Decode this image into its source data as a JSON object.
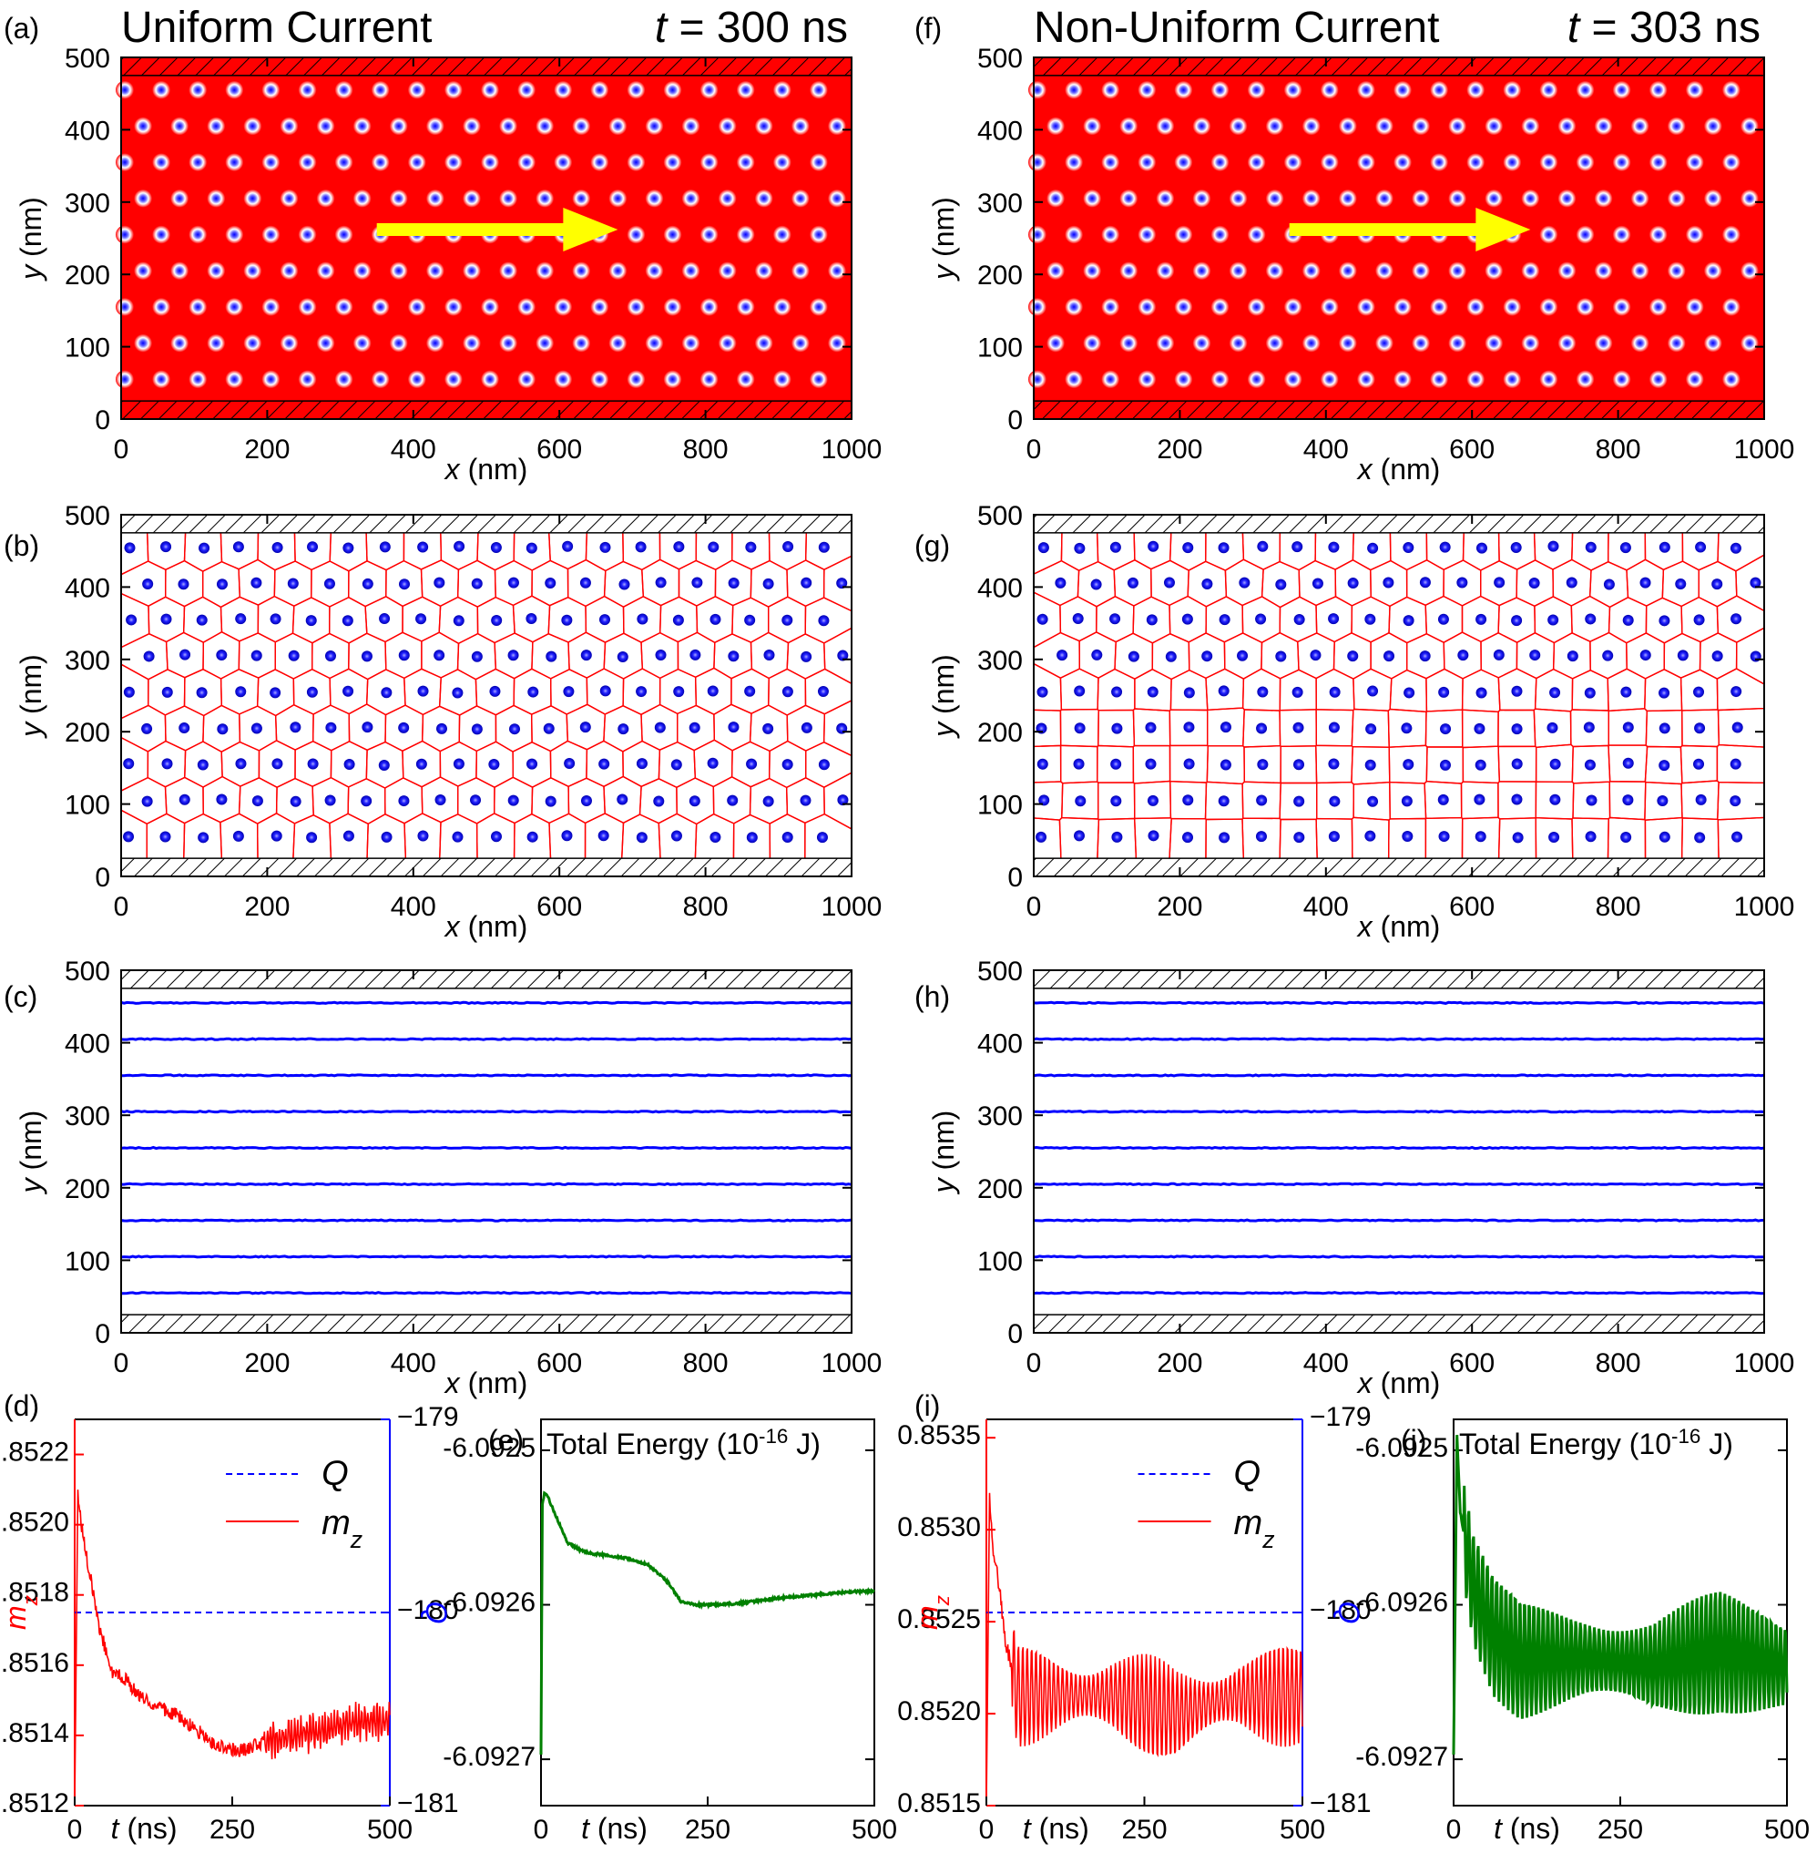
{
  "chart_data": [
    {
      "type": "heatmap",
      "panel": "(a)",
      "title": "Uniform Current",
      "time_label": "t = 300 ns",
      "xlabel": "x (nm)",
      "ylabel": "y (nm)",
      "xlim": [
        0,
        1000
      ],
      "ylim": [
        0,
        500
      ],
      "xticks": [
        0,
        200,
        400,
        600,
        800,
        1000
      ],
      "yticks": [
        0,
        100,
        200,
        300,
        400,
        500
      ],
      "rows_y": [
        55,
        105,
        155,
        205,
        255,
        305,
        355,
        405,
        455
      ],
      "spacing_nm": 50,
      "arrow": {
        "x_start": 350,
        "x_end": 680,
        "y": 262
      },
      "colors": {
        "background": "#ff0000",
        "skyrmion_core": "#0000ff",
        "arrow": "#ffff00",
        "hatch": "#000000"
      },
      "boundary": "hatched edges y<25 and y>475"
    },
    {
      "type": "scatter",
      "panel": "(b)",
      "description_note": "skyrmion positions with Voronoi tessellation",
      "xlabel": "x (nm)",
      "ylabel": "y (nm)",
      "xlim": [
        0,
        1000
      ],
      "ylim": [
        0,
        500
      ],
      "xticks": [
        0,
        200,
        400,
        600,
        800,
        1000
      ],
      "yticks": [
        0,
        100,
        200,
        300,
        400,
        500
      ],
      "rows_y": [
        55,
        105,
        155,
        205,
        255,
        305,
        355,
        405,
        455
      ],
      "lattice": "triangular",
      "colors": {
        "points": "#0000ff",
        "voronoi": "#ff0000"
      }
    },
    {
      "type": "line",
      "panel": "(c)",
      "xlabel": "x (nm)",
      "ylabel": "y (nm)",
      "xlim": [
        0,
        1000
      ],
      "ylim": [
        0,
        500
      ],
      "xticks": [
        0,
        200,
        400,
        600,
        800,
        1000
      ],
      "yticks": [
        0,
        100,
        200,
        300,
        400,
        500
      ],
      "tracks_y": [
        55,
        105,
        155,
        205,
        255,
        305,
        355,
        405,
        455
      ],
      "colors": {
        "tracks": "#0000ff"
      }
    },
    {
      "type": "line",
      "panel": "(d)",
      "xlabel": "t (ns)",
      "ylabel_left": "m_z",
      "ylabel_right": "Q",
      "xlim": [
        0,
        500
      ],
      "ylim_left": [
        0.8512,
        0.8523
      ],
      "ylim_right": [
        -181,
        -179
      ],
      "xticks": [
        0,
        250,
        500
      ],
      "yticks_left": [
        "0.8512",
        "0.8514",
        "0.8516",
        "0.8518",
        "0.8520",
        "0.8522"
      ],
      "yticks_right": [
        "−179",
        "−180",
        "−181"
      ],
      "legend": [
        "Q",
        "m_z"
      ],
      "series": [
        {
          "name": "Q",
          "style": "dashed",
          "color": "#0000ff",
          "axis": "right",
          "value": -180
        },
        {
          "name": "m_z",
          "style": "solid",
          "color": "#ff0000",
          "axis": "left",
          "x": [
            0,
            5,
            10,
            20,
            30,
            40,
            60,
            80,
            100,
            130,
            160,
            190,
            220,
            240,
            270,
            300,
            330,
            360,
            400,
            450,
            500
          ],
          "y": [
            0.8512,
            0.8521,
            0.852,
            0.8519,
            0.8518,
            0.8517,
            0.85158,
            0.85156,
            0.85152,
            0.85148,
            0.85146,
            0.85142,
            0.85138,
            0.85136,
            0.85136,
            0.85138,
            0.85139,
            0.8514,
            0.85142,
            0.85144,
            0.85144
          ]
        }
      ]
    },
    {
      "type": "line",
      "panel": "(e)",
      "title": "Total Energy (10",
      "title_exp": "-16",
      "title_unit": " J)",
      "xlabel": "t (ns)",
      "xlim": [
        0,
        500
      ],
      "ylim": [
        -6.09273,
        -6.09248
      ],
      "xticks": [
        0,
        250,
        500
      ],
      "yticks": [
        "-6.0925",
        "-6.0926",
        "-6.0927"
      ],
      "series": [
        {
          "name": "Total Energy",
          "color": "#008000",
          "x": [
            0,
            2,
            5,
            10,
            20,
            40,
            60,
            80,
            100,
            130,
            160,
            190,
            210,
            230,
            260,
            300,
            350,
            400,
            450,
            500
          ],
          "y": [
            -6.092697,
            -6.092535,
            -6.092528,
            -6.09253,
            -6.09254,
            -6.09256,
            -6.092565,
            -6.092567,
            -6.092568,
            -6.09257,
            -6.092574,
            -6.092585,
            -6.092598,
            -6.0926,
            -6.0926,
            -6.092599,
            -6.092596,
            -6.092594,
            -6.092592,
            -6.092591
          ]
        }
      ]
    },
    {
      "type": "heatmap",
      "panel": "(f)",
      "title": "Non-Uniform Current",
      "time_label": "t = 303 ns",
      "xlabel": "x (nm)",
      "ylabel": "y (nm)",
      "xlim": [
        0,
        1000
      ],
      "ylim": [
        0,
        500
      ],
      "xticks": [
        0,
        200,
        400,
        600,
        800,
        1000
      ],
      "yticks": [
        0,
        100,
        200,
        300,
        400,
        500
      ],
      "rows_y": [
        55,
        105,
        155,
        205,
        255,
        305,
        355,
        405,
        455
      ],
      "spacing_nm": 50,
      "arrow": {
        "x_start": 350,
        "x_end": 680,
        "y": 262
      },
      "colors": {
        "background": "#ff0000",
        "skyrmion_core": "#0000ff",
        "arrow": "#ffff00",
        "hatch": "#000000"
      }
    },
    {
      "type": "scatter",
      "panel": "(g)",
      "xlabel": "x (nm)",
      "ylabel": "y (nm)",
      "xlim": [
        0,
        1000
      ],
      "ylim": [
        0,
        500
      ],
      "xticks": [
        0,
        200,
        400,
        600,
        800,
        1000
      ],
      "yticks": [
        0,
        100,
        200,
        300,
        400,
        500
      ],
      "rows_y": [
        55,
        105,
        155,
        205,
        255,
        305,
        355,
        405,
        455
      ],
      "lattice": "square (lower rows) / triangular (upper rows)",
      "colors": {
        "points": "#0000ff",
        "voronoi": "#ff0000"
      }
    },
    {
      "type": "line",
      "panel": "(h)",
      "xlabel": "x (nm)",
      "ylabel": "y (nm)",
      "xlim": [
        0,
        1000
      ],
      "ylim": [
        0,
        500
      ],
      "xticks": [
        0,
        200,
        400,
        600,
        800,
        1000
      ],
      "yticks": [
        0,
        100,
        200,
        300,
        400,
        500
      ],
      "tracks_y": [
        55,
        105,
        155,
        205,
        255,
        305,
        355,
        405,
        455
      ],
      "colors": {
        "tracks": "#0000ff"
      }
    },
    {
      "type": "line",
      "panel": "(i)",
      "xlabel": "t (ns)",
      "ylabel_left": "m_z",
      "ylabel_right": "Q",
      "xlim": [
        0,
        500
      ],
      "ylim_left": [
        0.8515,
        0.8536
      ],
      "ylim_right": [
        -181,
        -179
      ],
      "xticks": [
        0,
        250,
        500
      ],
      "yticks_left": [
        "0.8515",
        "0.8520",
        "0.8525",
        "0.8530",
        "0.8535"
      ],
      "yticks_right": [
        "−179",
        "−180",
        "−181"
      ],
      "legend": [
        "Q",
        "m_z"
      ],
      "series": [
        {
          "name": "Q",
          "style": "dashed",
          "color": "#0000ff",
          "axis": "right",
          "value": -180
        },
        {
          "name": "m_z",
          "style": "solid",
          "color": "#ff0000",
          "axis": "left",
          "note": "oscillating, mean about 0.8521, amplitude about 0.0003",
          "x": [
            0,
            5,
            10,
            20,
            30,
            50,
            100,
            200,
            300,
            400,
            500
          ],
          "y": [
            0.8515,
            0.8532,
            0.8529,
            0.8527,
            0.8524,
            0.8521,
            0.8521,
            0.8521,
            0.852,
            0.8521,
            0.8521
          ]
        }
      ]
    },
    {
      "type": "line",
      "panel": "(j)",
      "title": "Total Energy (10",
      "title_exp": "-16",
      "title_unit": " J)",
      "xlabel": "t (ns)",
      "xlim": [
        0,
        500
      ],
      "ylim": [
        -6.09273,
        -6.09248
      ],
      "xticks": [
        0,
        250,
        500
      ],
      "yticks": [
        "-6.0925",
        "-6.0926",
        "-6.0927"
      ],
      "series": [
        {
          "name": "Total Energy",
          "color": "#008000",
          "note": "oscillating, mean about -6.092635",
          "x": [
            0,
            5,
            10,
            30,
            60,
            100,
            200,
            300,
            400,
            500
          ],
          "y": [
            -6.092697,
            -6.09249,
            -6.09254,
            -6.09259,
            -6.09262,
            -6.092635,
            -6.092635,
            -6.09264,
            -6.09263,
            -6.09264
          ]
        }
      ]
    }
  ],
  "labels": {
    "a": "(a)",
    "b": "(b)",
    "c": "(c)",
    "d": "(d)",
    "e": "(e)",
    "f": "(f)",
    "g": "(g)",
    "h": "(h)",
    "i": "(i)",
    "j": "(j)"
  },
  "axis_text": {
    "x_nm": "x (nm)",
    "y_nm": "y (nm)",
    "t_ns": "t (ns)",
    "x_var": "x",
    "y_var": "y",
    "t_var": "t",
    "nm": " (nm)",
    "ns": " (ns)",
    "m": "m",
    "z": "z",
    "Q": "Q"
  }
}
